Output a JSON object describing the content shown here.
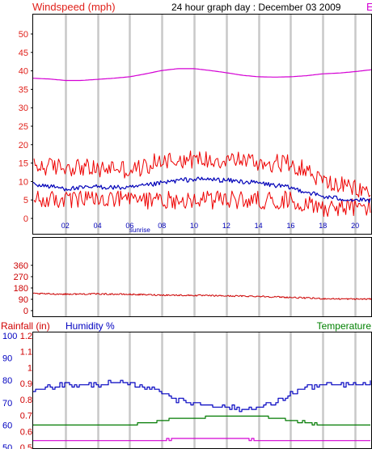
{
  "header": {
    "wind_title": "Windspeed (mph)",
    "graph_title": "24 hour graph day : December 03 2009",
    "cut_legend_glyph": "E"
  },
  "colors": {
    "wind_label": "#e0201a",
    "gust": "#ee0000",
    "avg": "#0000b8",
    "pressure": "#d400d4",
    "direction": "#cc0000",
    "humidity": "#0000c0",
    "temperature": "#007a00",
    "rain_label": "#d00000",
    "humidity_label": "#0000c0",
    "temperature_label": "#008000",
    "frame": "#000000",
    "grid": "#c8c8c8"
  },
  "chart_data": [
    {
      "type": "line",
      "panel": "wind",
      "title": "Windspeed (mph)",
      "ylim": [
        0,
        50
      ],
      "y_ticks": [
        "0",
        "5",
        "10",
        "15",
        "20",
        "25",
        "30",
        "35",
        "40",
        "45",
        "50"
      ],
      "x_ticks": [
        "02",
        "04",
        "06",
        "08",
        "10",
        "12",
        "14",
        "16",
        "18",
        "20"
      ],
      "x_range_hours": [
        0,
        21
      ],
      "annotation": "sunrise",
      "annotation_hour": 6.0,
      "series": [
        {
          "key": "gust_high",
          "color": "#ee0000",
          "x": [
            0,
            1,
            2,
            3,
            4,
            5,
            6,
            7,
            8,
            9,
            10,
            11,
            12,
            13,
            14,
            15,
            16,
            17,
            18,
            19,
            20,
            21
          ],
          "values": [
            14,
            14,
            14,
            14,
            13,
            14,
            13,
            14,
            16,
            16,
            16,
            16,
            16,
            16,
            15,
            15,
            15,
            13,
            10,
            9,
            8,
            7
          ]
        },
        {
          "key": "wind_low",
          "color": "#ee0000",
          "x": [
            0,
            1,
            2,
            3,
            4,
            5,
            6,
            7,
            8,
            9,
            10,
            11,
            12,
            13,
            14,
            15,
            16,
            17,
            18,
            19,
            20,
            21
          ],
          "values": [
            5,
            5,
            5,
            5,
            5,
            5,
            5,
            5,
            5,
            5,
            5,
            5,
            5,
            5,
            5,
            5,
            5,
            4,
            3,
            3,
            3,
            3
          ]
        },
        {
          "key": "wind_avg",
          "color": "#0000b8",
          "x": [
            0,
            1,
            2,
            3,
            4,
            5,
            6,
            7,
            8,
            9,
            10,
            11,
            12,
            13,
            14,
            15,
            16,
            17,
            18,
            19,
            20,
            21
          ],
          "values": [
            9.3,
            8.7,
            8.1,
            8.2,
            8.6,
            8.4,
            8.3,
            8.9,
            9.6,
            10.3,
            10.6,
            10.6,
            10.3,
            10.0,
            9.6,
            9.0,
            8.3,
            7.2,
            5.9,
            5.4,
            5.0,
            4.8
          ]
        },
        {
          "key": "pressure",
          "color": "#d400d4",
          "x": [
            0,
            1,
            2,
            3,
            4,
            5,
            6,
            7,
            8,
            9,
            10,
            11,
            12,
            13,
            14,
            15,
            16,
            17,
            18,
            19,
            20,
            21
          ],
          "values": [
            38.0,
            37.8,
            37.4,
            37.4,
            37.7,
            38.0,
            38.4,
            39.2,
            40.1,
            40.6,
            40.6,
            40.1,
            39.5,
            38.8,
            38.4,
            38.3,
            38.4,
            38.7,
            39.2,
            39.4,
            39.8,
            40.3
          ]
        }
      ]
    },
    {
      "type": "line",
      "panel": "direction",
      "ylim": [
        0,
        360
      ],
      "y_ticks": [
        "0",
        "90",
        "180",
        "270",
        "360"
      ],
      "x_range_hours": [
        0,
        21
      ],
      "series": [
        {
          "key": "wind_direction",
          "color": "#cc0000",
          "x": [
            0,
            2,
            4,
            6,
            8,
            10,
            12,
            14,
            16,
            18,
            20,
            21
          ],
          "values": [
            135,
            131,
            133,
            129,
            124,
            121,
            117,
            114,
            105,
            95,
            92,
            92
          ]
        }
      ]
    },
    {
      "type": "line",
      "panel": "humidity-temp",
      "left_axis_label": "Rainfall (in)",
      "center_axis_label": "Humidity %",
      "right_axis_label": "Temperature",
      "humidity_ylim": [
        50,
        100
      ],
      "humidity_ticks": [
        "50",
        "60",
        "70",
        "80",
        "90",
        "100"
      ],
      "rain_ylim": [
        0.5,
        1.2
      ],
      "rain_ticks": [
        "0.5",
        "0.6",
        "0.7",
        "0.8",
        "0.9",
        "1",
        "1.1",
        "1.2"
      ],
      "x_range_hours": [
        0,
        21
      ],
      "series": [
        {
          "key": "humidity",
          "color": "#0000c0",
          "x": [
            0,
            1,
            2,
            3,
            4,
            5,
            6,
            7,
            8,
            9,
            10,
            11,
            12,
            13,
            14,
            15,
            16,
            17,
            18,
            19,
            20,
            21
          ],
          "values": [
            76,
            77,
            78,
            78,
            78,
            79,
            78,
            77,
            75,
            71,
            70,
            69,
            68,
            67,
            68,
            70,
            74,
            77,
            78,
            78,
            78,
            79
          ]
        },
        {
          "key": "temperature",
          "color": "#007a00",
          "x": [
            0,
            1,
            2,
            3,
            4,
            5,
            6,
            7,
            8,
            9,
            10,
            11,
            12,
            13,
            14,
            15,
            16,
            17,
            18,
            19,
            20,
            21
          ],
          "values": [
            60,
            60,
            60,
            60,
            60,
            60,
            60,
            61,
            62,
            63,
            63,
            64,
            64,
            64,
            64,
            63,
            62,
            61,
            60,
            60,
            60,
            60
          ]
        },
        {
          "key": "third_series",
          "color": "#d400d4",
          "x": [
            0,
            1,
            2,
            3,
            4,
            5,
            6,
            7,
            8,
            9,
            10,
            11,
            12,
            13,
            14,
            15,
            16,
            17,
            18,
            19,
            20,
            21
          ],
          "values": [
            53,
            53,
            53,
            53,
            53,
            53,
            53,
            53,
            53,
            54,
            54,
            54,
            54,
            54,
            53,
            53,
            53,
            53,
            53,
            53,
            53,
            53
          ]
        }
      ]
    }
  ]
}
